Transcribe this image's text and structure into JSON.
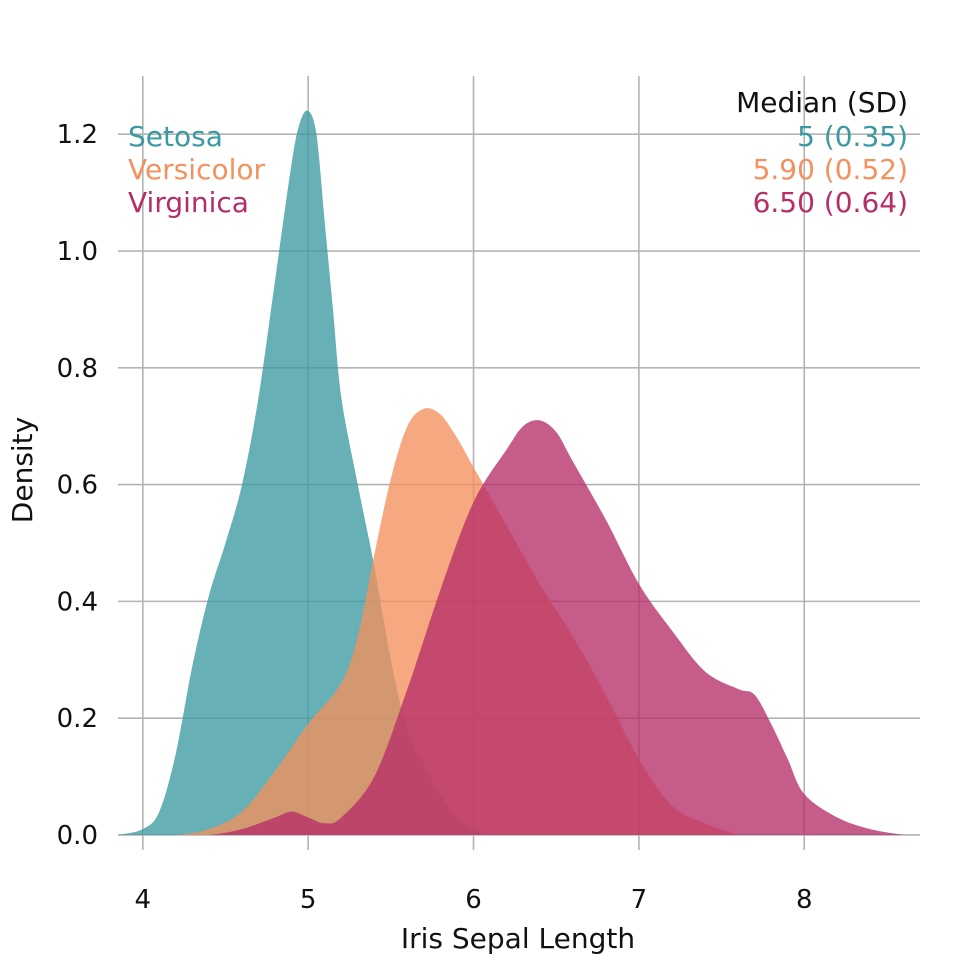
{
  "chart_data": {
    "type": "area",
    "xlabel": "Iris Sepal Length",
    "ylabel": "Density",
    "xlim": [
      3.85,
      8.7
    ],
    "ylim": [
      -0.06,
      1.31
    ],
    "x_ticks": [
      4,
      5,
      6,
      7,
      8
    ],
    "x_tick_labels": [
      "4",
      "5",
      "6",
      "7",
      "8"
    ],
    "y_ticks": [
      0.0,
      0.2,
      0.4,
      0.6,
      0.8,
      1.0,
      1.2
    ],
    "y_tick_labels": [
      "0.0",
      "0.2",
      "0.4",
      "0.6",
      "0.8",
      "1.0",
      "1.2"
    ],
    "grid": true,
    "legend_placement": "top",
    "summary_header": "Median (SD)",
    "series": [
      {
        "name": "Setosa",
        "summary": "5 (0.35)",
        "color": "#3b9aa1",
        "x": [
          3.85,
          4.0,
          4.1,
          4.2,
          4.3,
          4.4,
          4.5,
          4.6,
          4.7,
          4.8,
          4.9,
          4.95,
          5.0,
          5.05,
          5.1,
          5.15,
          5.2,
          5.3,
          5.4,
          5.5,
          5.6,
          5.7,
          5.8,
          5.9,
          6.0,
          6.1
        ],
        "y": [
          0.0,
          0.01,
          0.04,
          0.14,
          0.29,
          0.41,
          0.5,
          0.6,
          0.75,
          0.95,
          1.15,
          1.22,
          1.24,
          1.2,
          1.05,
          0.9,
          0.75,
          0.6,
          0.46,
          0.3,
          0.18,
          0.12,
          0.07,
          0.03,
          0.01,
          0.0
        ]
      },
      {
        "name": "Versicolor",
        "summary": "5.90 (0.52)",
        "color": "#f4915e",
        "x": [
          4.0,
          4.2,
          4.4,
          4.6,
          4.8,
          5.0,
          5.2,
          5.3,
          5.4,
          5.5,
          5.6,
          5.7,
          5.8,
          5.9,
          6.0,
          6.2,
          6.4,
          6.6,
          6.8,
          7.0,
          7.2,
          7.4,
          7.6
        ],
        "y": [
          0.0,
          0.0,
          0.01,
          0.04,
          0.11,
          0.19,
          0.26,
          0.34,
          0.48,
          0.61,
          0.7,
          0.73,
          0.72,
          0.68,
          0.63,
          0.53,
          0.43,
          0.34,
          0.24,
          0.13,
          0.05,
          0.02,
          0.0
        ]
      },
      {
        "name": "Virginica",
        "summary": "6.50 (0.64)",
        "color": "#b62e68",
        "x": [
          4.2,
          4.4,
          4.6,
          4.8,
          4.9,
          5.0,
          5.1,
          5.2,
          5.4,
          5.6,
          5.8,
          6.0,
          6.2,
          6.3,
          6.4,
          6.5,
          6.6,
          6.8,
          7.0,
          7.2,
          7.4,
          7.6,
          7.7,
          7.8,
          7.9,
          8.0,
          8.2,
          8.4,
          8.6
        ],
        "y": [
          0.0,
          0.0,
          0.01,
          0.03,
          0.04,
          0.03,
          0.02,
          0.03,
          0.1,
          0.25,
          0.42,
          0.57,
          0.66,
          0.7,
          0.71,
          0.69,
          0.64,
          0.54,
          0.43,
          0.35,
          0.28,
          0.25,
          0.24,
          0.19,
          0.13,
          0.07,
          0.03,
          0.01,
          0.0
        ]
      }
    ]
  }
}
